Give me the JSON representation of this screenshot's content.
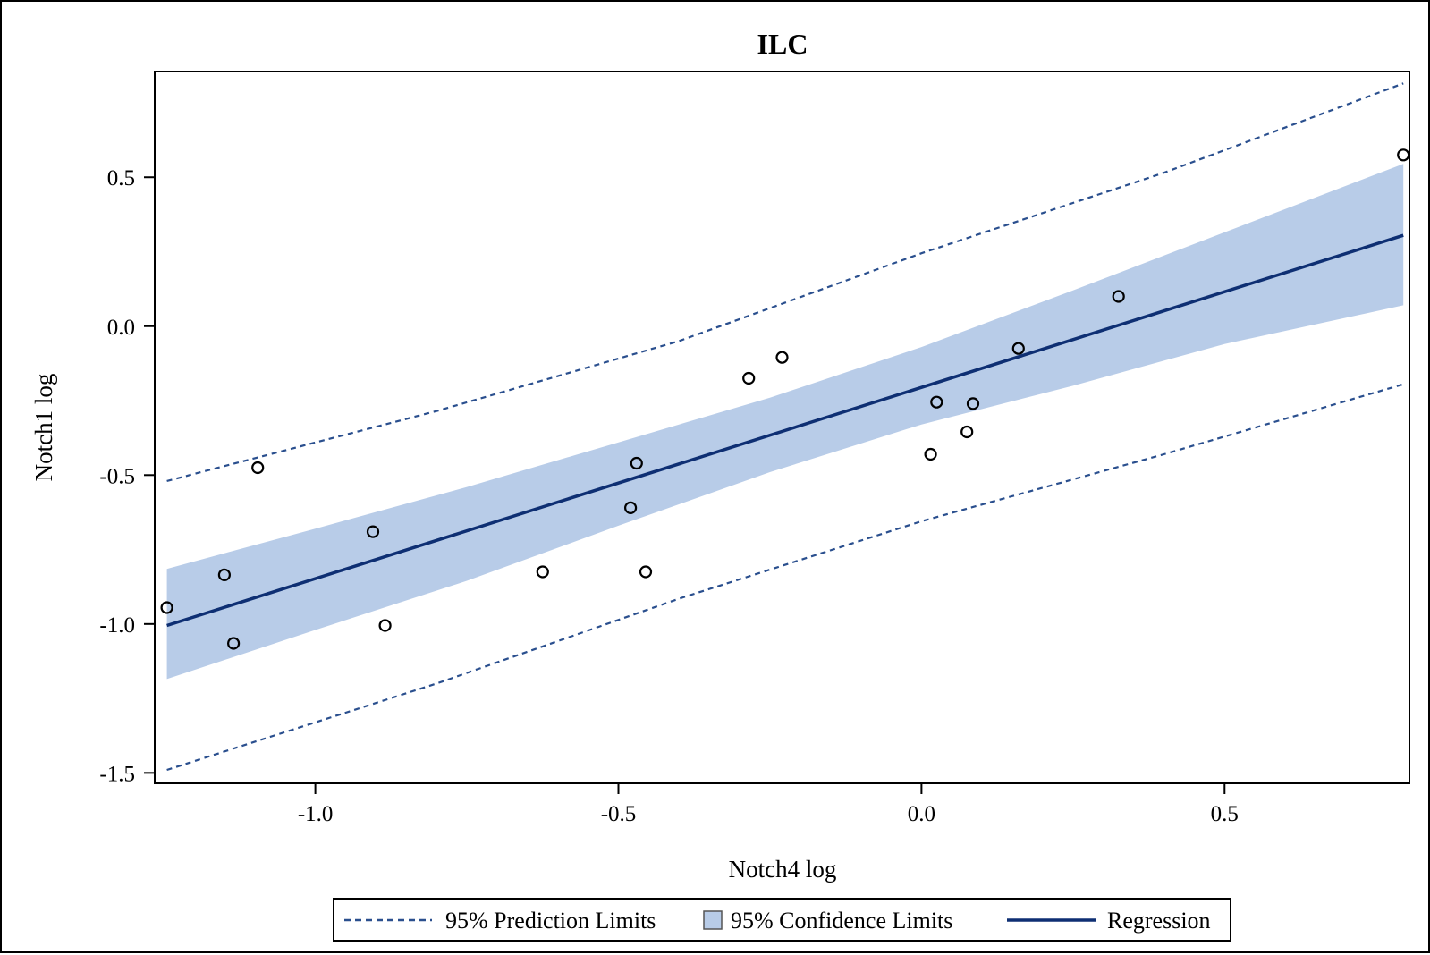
{
  "chart_data": {
    "type": "scatter",
    "title": "ILC",
    "xlabel": "Notch4 log",
    "ylabel": "Notch1 log",
    "xlim": [
      -1.265,
      0.805
    ],
    "ylim": [
      -1.535,
      0.855
    ],
    "xticks": [
      -1.0,
      -0.5,
      0.0,
      0.5
    ],
    "xtick_labels": [
      "-1.0",
      "-0.5",
      "0.0",
      "0.5"
    ],
    "yticks": [
      -1.5,
      -1.0,
      -0.5,
      0.0,
      0.5
    ],
    "ytick_labels": [
      "-1.5",
      "-1.0",
      "-0.5",
      "0.0",
      "0.5"
    ],
    "points": {
      "x": [
        -1.245,
        -1.15,
        -1.135,
        -1.095,
        -0.905,
        -0.885,
        -0.625,
        -0.48,
        -0.47,
        -0.455,
        -0.285,
        -0.23,
        0.015,
        0.025,
        0.075,
        0.085,
        0.16,
        0.325,
        0.795
      ],
      "y": [
        -0.945,
        -0.835,
        -1.065,
        -0.475,
        -0.69,
        -1.005,
        -0.825,
        -0.61,
        -0.46,
        -0.825,
        -0.175,
        -0.105,
        -0.43,
        -0.255,
        -0.355,
        -0.26,
        -0.075,
        0.1,
        0.575
      ]
    },
    "regression": {
      "x": [
        -1.245,
        0.795
      ],
      "y": [
        -1.005,
        0.305
      ]
    },
    "prediction_limits": {
      "upper": {
        "x": [
          -1.245,
          -0.8,
          -0.4,
          0.0,
          0.4,
          0.795
        ],
        "y": [
          -0.52,
          -0.285,
          -0.05,
          0.245,
          0.515,
          0.815
        ]
      },
      "lower": {
        "x": [
          -1.245,
          -0.8,
          -0.4,
          0.0,
          0.4,
          0.795
        ],
        "y": [
          -1.49,
          -1.2,
          -0.915,
          -0.655,
          -0.43,
          -0.195
        ]
      }
    },
    "confidence_limits": {
      "upper": {
        "x": [
          -1.245,
          -1.0,
          -0.75,
          -0.5,
          -0.25,
          0.0,
          0.25,
          0.5,
          0.795
        ],
        "y": [
          -0.815,
          -0.68,
          -0.54,
          -0.39,
          -0.24,
          -0.07,
          0.12,
          0.315,
          0.545
        ]
      },
      "lower": {
        "x": [
          -1.245,
          -1.0,
          -0.75,
          -0.5,
          -0.25,
          0.0,
          0.25,
          0.5,
          0.795
        ],
        "y": [
          -1.185,
          -1.02,
          -0.855,
          -0.67,
          -0.49,
          -0.33,
          -0.2,
          -0.06,
          0.07
        ]
      }
    },
    "legend": {
      "position": "bottom",
      "entries": [
        "95% Prediction Limits",
        "95% Confidence Limits",
        "Regression"
      ]
    },
    "grid": false
  },
  "colors": {
    "band_fill": "#b8cce8",
    "regression_line": "#0e2f73",
    "prediction_line": "#2a4f8e",
    "marker": "#000000"
  }
}
